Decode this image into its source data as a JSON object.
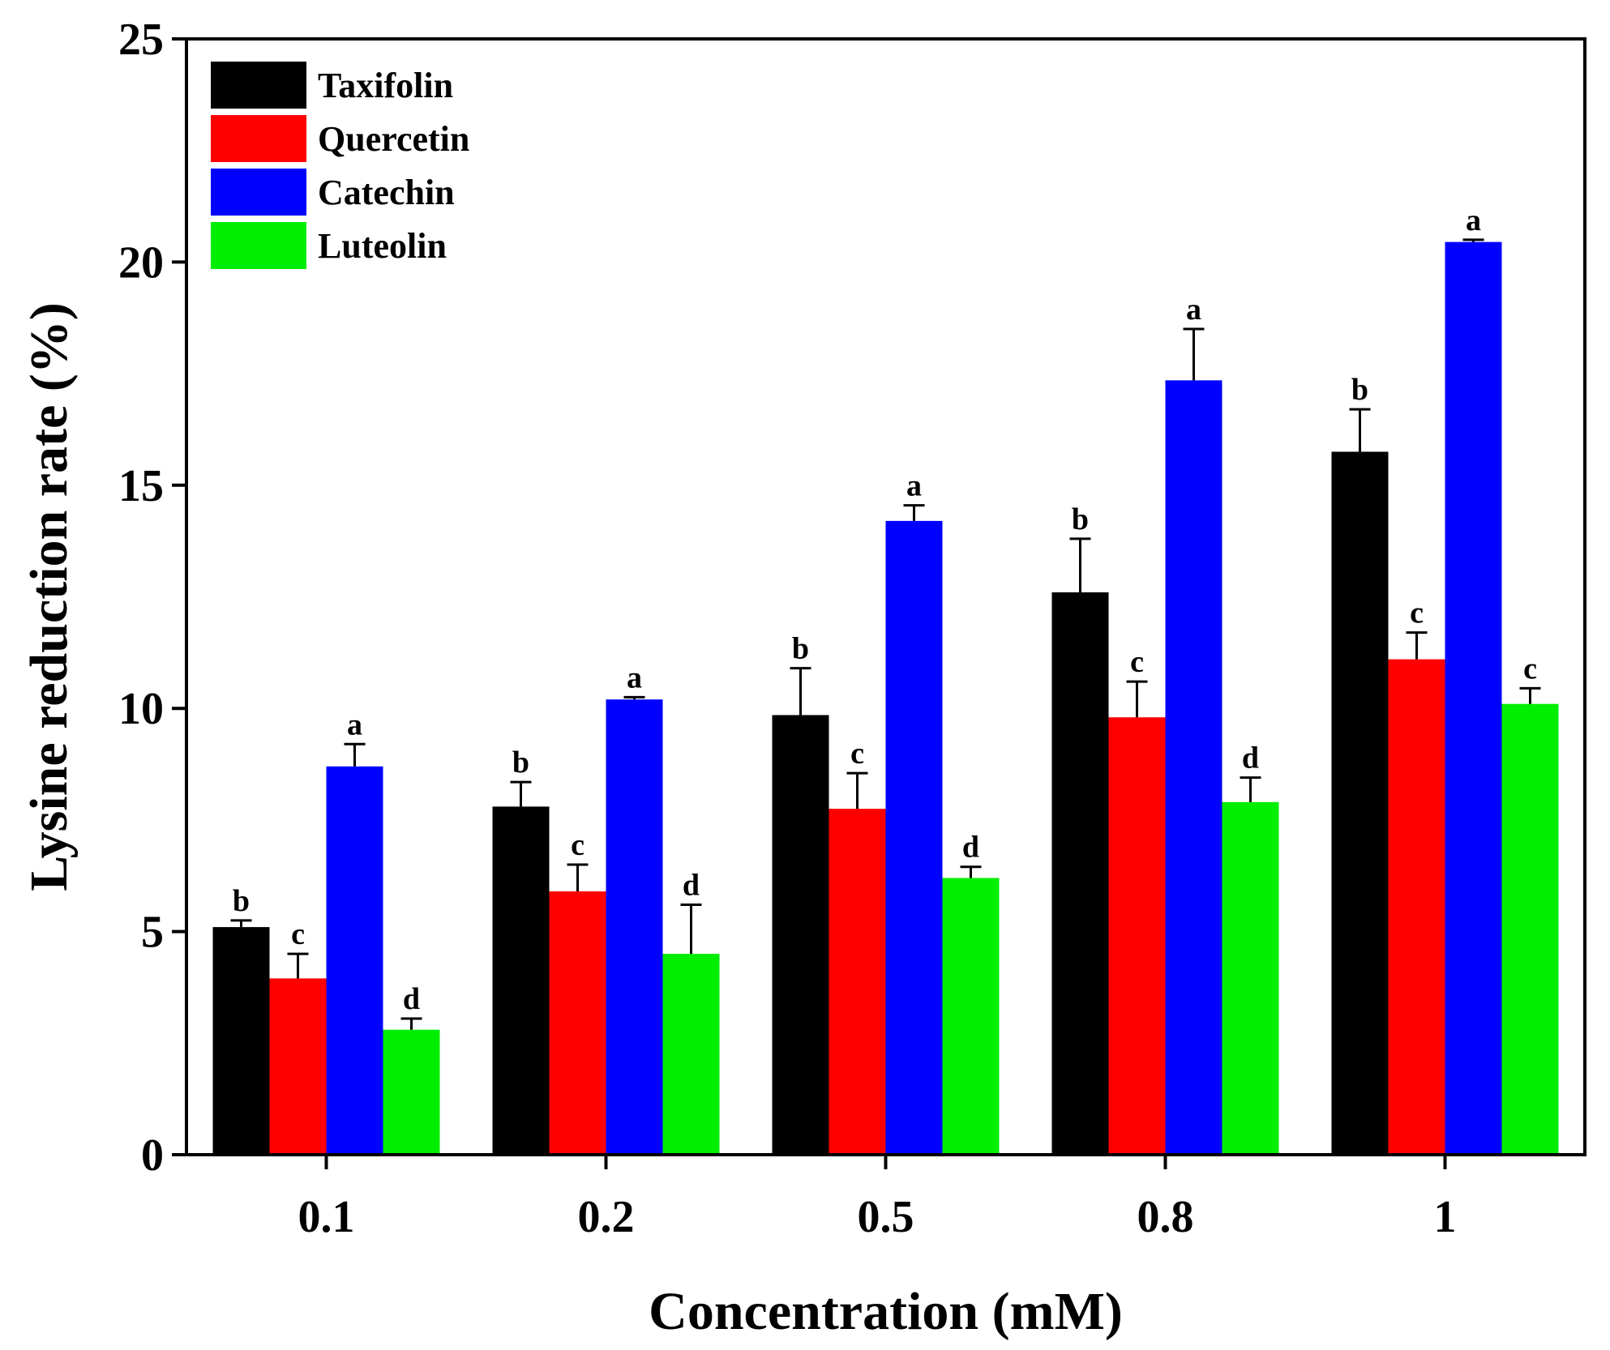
{
  "chart_data": {
    "type": "bar",
    "title": "",
    "xlabel": "Concentration (mM)",
    "ylabel": "Lysine reduction rate (%)",
    "ylim": [
      0,
      25
    ],
    "yticks": [
      "0",
      "5",
      "10",
      "15",
      "20",
      "25"
    ],
    "categories": [
      "0.1",
      "0.2",
      "0.5",
      "0.8",
      "1"
    ],
    "legend_position": "top-left",
    "series": [
      {
        "name": "Taxifolin",
        "color": "#000000",
        "values": [
          5.1,
          7.8,
          9.85,
          12.6,
          15.75
        ],
        "errors": [
          0.15,
          0.55,
          1.05,
          1.2,
          0.95
        ],
        "labels": [
          "b",
          "b",
          "b",
          "b",
          "b"
        ]
      },
      {
        "name": "Quercetin",
        "color": "#ff0000",
        "values": [
          3.95,
          5.9,
          7.75,
          9.8,
          11.1
        ],
        "errors": [
          0.55,
          0.6,
          0.8,
          0.8,
          0.6
        ],
        "labels": [
          "c",
          "c",
          "c",
          "c",
          "c"
        ]
      },
      {
        "name": "Catechin",
        "color": "#0000ff",
        "values": [
          8.7,
          10.2,
          14.2,
          17.35,
          20.45
        ],
        "errors": [
          0.5,
          0.05,
          0.35,
          1.15,
          0.05
        ],
        "labels": [
          "a",
          "a",
          "a",
          "a",
          "a"
        ]
      },
      {
        "name": "Luteolin",
        "color": "#00ee00",
        "values": [
          2.8,
          4.5,
          6.2,
          7.9,
          10.1
        ],
        "errors": [
          0.25,
          1.1,
          0.25,
          0.55,
          0.35
        ],
        "labels": [
          "d",
          "d",
          "d",
          "d",
          "c"
        ]
      }
    ]
  }
}
